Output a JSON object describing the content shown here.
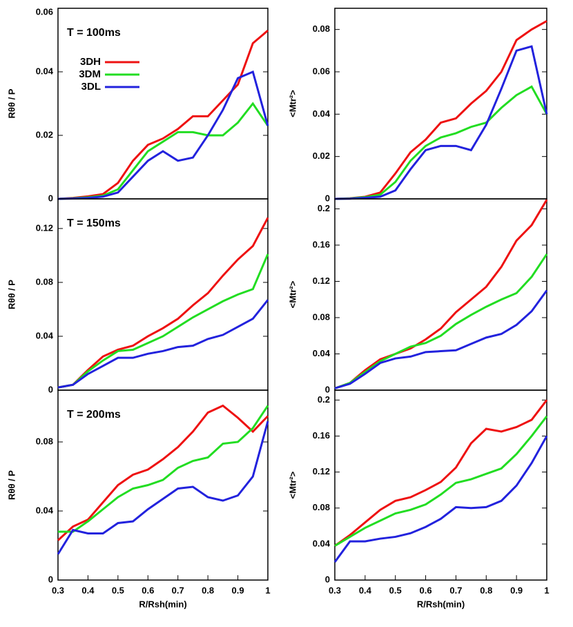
{
  "chart_data": [
    {
      "type": "line",
      "ylabel": "Rθθ / P",
      "annotation": "T = 100ms",
      "x": [
        0.3,
        0.35,
        0.4,
        0.45,
        0.5,
        0.55,
        0.6,
        0.65,
        0.7,
        0.75,
        0.8,
        0.85,
        0.9,
        0.95,
        1
      ],
      "xlim": [
        0.3,
        1
      ],
      "ylim": [
        0,
        0.06
      ],
      "yticks": [
        0,
        0.02,
        0.04,
        0.06
      ],
      "series": [
        {
          "name": "3DH",
          "color": "#ee1111",
          "values": [
            0,
            0.0003,
            0.0008,
            0.0015,
            0.005,
            0.012,
            0.017,
            0.019,
            0.022,
            0.026,
            0.026,
            0.031,
            0.036,
            0.049,
            0.053
          ]
        },
        {
          "name": "3DM",
          "color": "#22dd22",
          "values": [
            0,
            0.0002,
            0.0005,
            0.001,
            0.003,
            0.009,
            0.015,
            0.018,
            0.021,
            0.021,
            0.02,
            0.02,
            0.024,
            0.03,
            0.023
          ]
        },
        {
          "name": "3DL",
          "color": "#2222dd",
          "values": [
            0,
            0.0001,
            0.0003,
            0.0007,
            0.002,
            0.007,
            0.012,
            0.015,
            0.012,
            0.013,
            0.02,
            0.028,
            0.038,
            0.04,
            0.023
          ]
        }
      ]
    },
    {
      "type": "line",
      "ylabel": "<Mtr²>",
      "x": [
        0.3,
        0.35,
        0.4,
        0.45,
        0.5,
        0.55,
        0.6,
        0.65,
        0.7,
        0.75,
        0.8,
        0.85,
        0.9,
        0.95,
        1
      ],
      "xlim": [
        0.3,
        1
      ],
      "ylim": [
        0,
        0.09
      ],
      "yticks": [
        0,
        0.02,
        0.04,
        0.06,
        0.08
      ],
      "series": [
        {
          "color": "#ee1111",
          "values": [
            0,
            0.0003,
            0.001,
            0.003,
            0.012,
            0.022,
            0.028,
            0.036,
            0.038,
            0.045,
            0.051,
            0.06,
            0.075,
            0.08,
            0.084
          ]
        },
        {
          "color": "#22dd22",
          "values": [
            0,
            0.0002,
            0.0008,
            0.002,
            0.008,
            0.018,
            0.025,
            0.029,
            0.031,
            0.034,
            0.036,
            0.043,
            0.049,
            0.053,
            0.04
          ]
        },
        {
          "color": "#2222dd",
          "values": [
            0,
            0.0001,
            0.0005,
            0.001,
            0.004,
            0.014,
            0.023,
            0.025,
            0.025,
            0.023,
            0.035,
            0.052,
            0.07,
            0.072,
            0.04
          ]
        }
      ]
    },
    {
      "type": "line",
      "ylabel": "Rθθ / P",
      "annotation": "T = 150ms",
      "x": [
        0.3,
        0.35,
        0.4,
        0.45,
        0.5,
        0.55,
        0.6,
        0.65,
        0.7,
        0.75,
        0.8,
        0.85,
        0.9,
        0.95,
        1
      ],
      "xlim": [
        0.3,
        1
      ],
      "ylim": [
        0,
        0.142
      ],
      "yticks": [
        0,
        0.04,
        0.08,
        0.12
      ],
      "series": [
        {
          "color": "#ee1111",
          "values": [
            0.002,
            0.004,
            0.015,
            0.025,
            0.03,
            0.033,
            0.04,
            0.046,
            0.053,
            0.063,
            0.072,
            0.085,
            0.097,
            0.107,
            0.128
          ]
        },
        {
          "color": "#22dd22",
          "values": [
            0.002,
            0.004,
            0.014,
            0.022,
            0.029,
            0.03,
            0.035,
            0.04,
            0.047,
            0.054,
            0.06,
            0.066,
            0.071,
            0.075,
            0.101
          ]
        },
        {
          "color": "#2222dd",
          "values": [
            0.002,
            0.004,
            0.012,
            0.018,
            0.024,
            0.024,
            0.027,
            0.029,
            0.032,
            0.033,
            0.038,
            0.041,
            0.047,
            0.053,
            0.067
          ]
        }
      ]
    },
    {
      "type": "line",
      "ylabel": "<Mtr²>",
      "x": [
        0.3,
        0.35,
        0.4,
        0.45,
        0.5,
        0.55,
        0.6,
        0.65,
        0.7,
        0.75,
        0.8,
        0.85,
        0.9,
        0.95,
        1
      ],
      "xlim": [
        0.3,
        1
      ],
      "ylim": [
        0,
        0.211
      ],
      "yticks": [
        0,
        0.04,
        0.08,
        0.12,
        0.16,
        0.2
      ],
      "series": [
        {
          "color": "#ee1111",
          "values": [
            0.002,
            0.008,
            0.022,
            0.034,
            0.04,
            0.046,
            0.056,
            0.068,
            0.086,
            0.1,
            0.114,
            0.136,
            0.165,
            0.182,
            0.21
          ]
        },
        {
          "color": "#22dd22",
          "values": [
            0.002,
            0.008,
            0.02,
            0.032,
            0.04,
            0.048,
            0.052,
            0.06,
            0.073,
            0.083,
            0.092,
            0.1,
            0.107,
            0.125,
            0.15
          ]
        },
        {
          "color": "#2222dd",
          "values": [
            0.002,
            0.007,
            0.018,
            0.03,
            0.035,
            0.037,
            0.042,
            0.043,
            0.044,
            0.051,
            0.058,
            0.062,
            0.072,
            0.087,
            0.11
          ]
        }
      ]
    },
    {
      "type": "line",
      "ylabel": "Rθθ / P",
      "annotation": "T = 200ms",
      "xlabel": "R/Rsh(min)",
      "x": [
        0.3,
        0.35,
        0.4,
        0.45,
        0.5,
        0.55,
        0.6,
        0.65,
        0.7,
        0.75,
        0.8,
        0.85,
        0.9,
        0.95,
        1
      ],
      "xlim": [
        0.3,
        1
      ],
      "xticks": [
        0.3,
        0.4,
        0.5,
        0.6,
        0.7,
        0.8,
        0.9,
        1
      ],
      "ylim": [
        0,
        0.11
      ],
      "yticks": [
        0,
        0.04,
        0.08
      ],
      "series": [
        {
          "color": "#ee1111",
          "values": [
            0.023,
            0.031,
            0.035,
            0.045,
            0.055,
            0.061,
            0.064,
            0.07,
            0.077,
            0.086,
            0.097,
            0.101,
            0.094,
            0.086,
            0.095
          ]
        },
        {
          "color": "#22dd22",
          "values": [
            0.028,
            0.028,
            0.034,
            0.041,
            0.048,
            0.053,
            0.055,
            0.058,
            0.065,
            0.069,
            0.071,
            0.079,
            0.08,
            0.088,
            0.101
          ]
        },
        {
          "color": "#2222dd",
          "values": [
            0.015,
            0.029,
            0.027,
            0.027,
            0.033,
            0.034,
            0.041,
            0.047,
            0.053,
            0.054,
            0.048,
            0.046,
            0.049,
            0.06,
            0.092
          ]
        }
      ]
    },
    {
      "type": "line",
      "ylabel": "<Mtr²>",
      "xlabel": "R/Rsh(min)",
      "x": [
        0.3,
        0.35,
        0.4,
        0.45,
        0.5,
        0.55,
        0.6,
        0.65,
        0.7,
        0.75,
        0.8,
        0.85,
        0.9,
        0.95,
        1
      ],
      "xlim": [
        0.3,
        1
      ],
      "xticks": [
        0.3,
        0.4,
        0.5,
        0.6,
        0.7,
        0.8,
        0.9,
        1
      ],
      "ylim": [
        0,
        0.211
      ],
      "yticks": [
        0,
        0.04,
        0.08,
        0.12,
        0.16,
        0.2
      ],
      "series": [
        {
          "color": "#ee1111",
          "values": [
            0.038,
            0.05,
            0.064,
            0.078,
            0.088,
            0.092,
            0.1,
            0.109,
            0.125,
            0.152,
            0.168,
            0.165,
            0.17,
            0.178,
            0.2
          ]
        },
        {
          "color": "#22dd22",
          "values": [
            0.038,
            0.048,
            0.058,
            0.066,
            0.074,
            0.078,
            0.084,
            0.095,
            0.108,
            0.112,
            0.118,
            0.124,
            0.14,
            0.16,
            0.182
          ]
        },
        {
          "color": "#2222dd",
          "values": [
            0.02,
            0.043,
            0.043,
            0.046,
            0.048,
            0.052,
            0.059,
            0.068,
            0.081,
            0.08,
            0.081,
            0.088,
            0.105,
            0.13,
            0.16
          ]
        }
      ]
    }
  ]
}
